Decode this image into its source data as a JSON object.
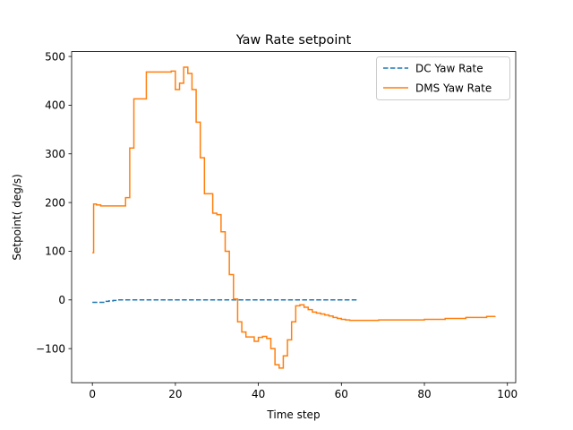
{
  "chart_data": {
    "type": "line",
    "title": "Yaw Rate setpoint",
    "xlabel": "Time step",
    "ylabel": "Setpoint( deg/s)",
    "xlim": [
      -5,
      102
    ],
    "ylim": [
      -170,
      510
    ],
    "xticks": [
      0,
      20,
      40,
      60,
      80,
      100
    ],
    "yticks": [
      -100,
      0,
      100,
      200,
      300,
      400,
      500
    ],
    "xtick_labels": [
      "0",
      "20",
      "40",
      "60",
      "80",
      "100"
    ],
    "ytick_labels": [
      "−100",
      "0",
      "100",
      "200",
      "300",
      "400",
      "500"
    ],
    "grid": false,
    "legend_position": "top-right",
    "series": [
      {
        "name": "DC Yaw Rate",
        "color": "#1f77b4",
        "style": "dashed",
        "step": "post",
        "x": [
          0,
          2,
          3,
          4,
          5,
          6,
          64
        ],
        "y": [
          -5,
          -5,
          -3,
          -2,
          -1,
          0,
          0
        ]
      },
      {
        "name": "DMS Yaw Rate",
        "color": "#ff7f0e",
        "style": "solid",
        "step": "post",
        "x": [
          0,
          0.3,
          1,
          2,
          7,
          8,
          9,
          10,
          13,
          19,
          20,
          21,
          22,
          23,
          24,
          25,
          26,
          27,
          29,
          30,
          31,
          32,
          33,
          34,
          35,
          36,
          37,
          39,
          40,
          41,
          42,
          43,
          44,
          45,
          46,
          47,
          48,
          49,
          50,
          51,
          52,
          53,
          54,
          55,
          56,
          57,
          58,
          59,
          60,
          61,
          62,
          65,
          69,
          80,
          85,
          90,
          95,
          97
        ],
        "y": [
          97,
          197,
          195,
          193,
          193,
          210,
          312,
          413,
          468,
          470,
          432,
          445,
          478,
          465,
          432,
          365,
          292,
          218,
          178,
          175,
          140,
          100,
          52,
          2,
          -45,
          -66,
          -76,
          -85,
          -77,
          -75,
          -79,
          -100,
          -133,
          -140,
          -115,
          -82,
          -45,
          -12,
          -10,
          -15,
          -20,
          -25,
          -27,
          -29,
          -31,
          -33,
          -36,
          -38,
          -40,
          -41,
          -42,
          -42,
          -41,
          -40,
          -38,
          -36,
          -34,
          -33
        ]
      }
    ]
  }
}
